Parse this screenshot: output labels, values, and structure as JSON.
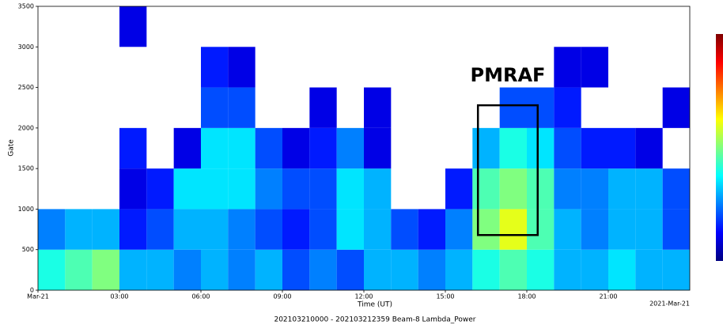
{
  "chart_data": {
    "type": "heatmap",
    "x_label": "Time (UT)",
    "y_label": "Gate",
    "footer": "202103210000 - 202103212359  Beam-8 Lambda_Power",
    "end_label": "2021-Mar-21",
    "xlim": [
      0,
      24
    ],
    "xticks": [
      {
        "value": 0,
        "label": "Mar-21"
      },
      {
        "value": 3,
        "label": "03:00"
      },
      {
        "value": 6,
        "label": "06:00"
      },
      {
        "value": 9,
        "label": "09:00"
      },
      {
        "value": 12,
        "label": "12:00"
      },
      {
        "value": 15,
        "label": "15:00"
      },
      {
        "value": 18,
        "label": "18:00"
      },
      {
        "value": 21,
        "label": "21:00"
      }
    ],
    "ylim": [
      0,
      3500
    ],
    "yticks": [
      0,
      500,
      1000,
      1500,
      2000,
      2500,
      3000,
      3500
    ],
    "x_bins": [
      0,
      1,
      2,
      3,
      4,
      5,
      6,
      7,
      8,
      9,
      10,
      11,
      12,
      13,
      14,
      15,
      16,
      17,
      18,
      19,
      20,
      21,
      22,
      23,
      24
    ],
    "y_bins": [
      0,
      500,
      1000,
      1500,
      2000,
      2500,
      3000,
      3500
    ],
    "colormap": "jet",
    "zlim": [
      0,
      1
    ],
    "z": [
      [
        0.4,
        0.45,
        0.5,
        0.3,
        0.3,
        0.25,
        0.3,
        0.25,
        0.3,
        0.2,
        0.25,
        0.2,
        0.3,
        0.3,
        0.25,
        0.3,
        0.4,
        0.45,
        0.4,
        0.3,
        0.3,
        0.35,
        0.3,
        0.3
      ],
      [
        0.25,
        0.3,
        0.3,
        0.15,
        0.2,
        0.3,
        0.3,
        0.25,
        0.2,
        0.15,
        0.2,
        0.35,
        0.3,
        0.2,
        0.15,
        0.25,
        0.5,
        0.6,
        0.45,
        0.3,
        0.25,
        0.3,
        0.3,
        0.2
      ],
      [
        null,
        null,
        null,
        0.1,
        0.15,
        0.35,
        0.35,
        0.35,
        0.25,
        0.2,
        0.2,
        0.35,
        0.3,
        null,
        null,
        0.15,
        0.45,
        0.5,
        0.45,
        0.25,
        0.25,
        0.3,
        0.3,
        0.2
      ],
      [
        null,
        null,
        null,
        0.15,
        null,
        0.1,
        0.35,
        0.35,
        0.2,
        0.1,
        0.15,
        0.25,
        0.1,
        null,
        null,
        null,
        0.3,
        0.4,
        0.35,
        0.2,
        0.15,
        0.15,
        0.1,
        null
      ],
      [
        null,
        null,
        null,
        null,
        null,
        null,
        0.2,
        0.2,
        null,
        null,
        0.1,
        null,
        0.1,
        null,
        null,
        null,
        null,
        0.2,
        0.2,
        0.15,
        null,
        null,
        null,
        0.1
      ],
      [
        null,
        null,
        null,
        null,
        null,
        null,
        0.15,
        0.1,
        null,
        null,
        null,
        null,
        null,
        null,
        null,
        null,
        null,
        null,
        null,
        0.1,
        0.1,
        null,
        null,
        null
      ],
      [
        null,
        null,
        null,
        0.1,
        null,
        null,
        null,
        null,
        null,
        null,
        null,
        null,
        null,
        null,
        null,
        null,
        null,
        null,
        null,
        null,
        null,
        null,
        null,
        null
      ]
    ],
    "annotation": {
      "text": "PMRAF",
      "x": [
        16.2,
        18.4
      ],
      "y": [
        680,
        2280
      ]
    }
  }
}
